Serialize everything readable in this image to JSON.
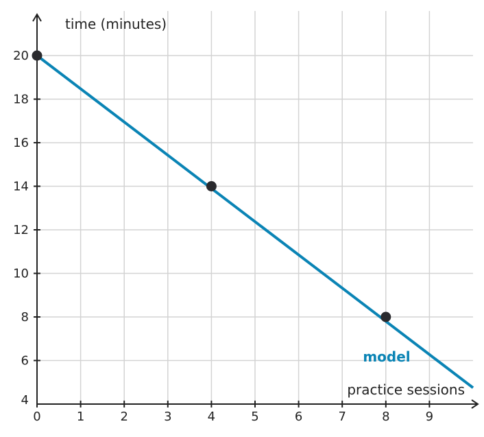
{
  "chart_data": {
    "type": "line",
    "xlabel": "practice sessions",
    "ylabel": "time (minutes)",
    "xlim": [
      0,
      10
    ],
    "ylim": [
      4,
      21.5
    ],
    "x_ticks": [
      "0",
      "1",
      "2",
      "3",
      "4",
      "5",
      "6",
      "7",
      "8",
      "9"
    ],
    "y_ticks": [
      "4",
      "6",
      "8",
      "10",
      "12",
      "14",
      "16",
      "18",
      "20"
    ],
    "grid": true,
    "series": [
      {
        "name": "model",
        "color": "#0a84b5",
        "line": [
          [
            0,
            20
          ],
          [
            10,
            4.75
          ]
        ],
        "points": [
          [
            0,
            20
          ],
          [
            4,
            14
          ],
          [
            8,
            8
          ]
        ]
      }
    ],
    "point_color": "#2a2a2e"
  }
}
